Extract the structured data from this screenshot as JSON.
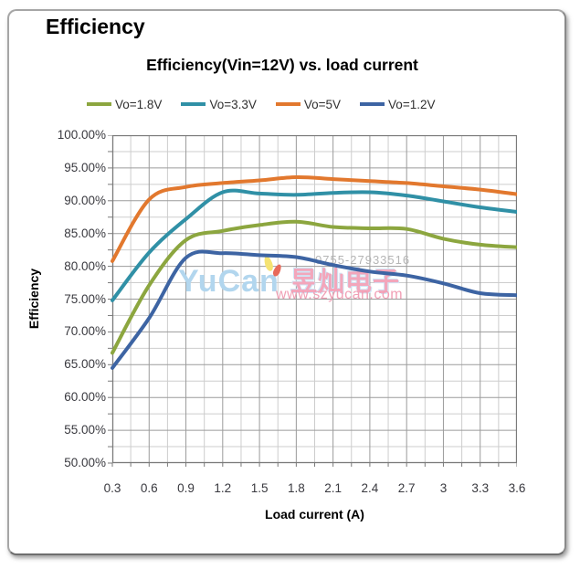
{
  "heading": "Efficiency",
  "chart": {
    "title": "Efficiency(Vin=12V) vs. load current",
    "xlabel": "Load current (A)",
    "ylabel": "Efficiency"
  },
  "y_tick_labels": [
    "100.00%",
    "95.00%",
    "90.00%",
    "85.00%",
    "80.00%",
    "75.00%",
    "70.00%",
    "65.00%",
    "60.00%",
    "55.00%",
    "50.00%"
  ],
  "x_tick_labels": [
    "0.3",
    "0.6",
    "0.9",
    "1.2",
    "1.5",
    "1.8",
    "2.1",
    "2.4",
    "2.7",
    "3",
    "3.3",
    "3.6"
  ],
  "chart_data": {
    "type": "line",
    "title": "Efficiency(Vin=12V) vs. load current",
    "xlabel": "Load current (A)",
    "ylabel": "Efficiency",
    "x": [
      0.3,
      0.6,
      0.9,
      1.2,
      1.5,
      1.8,
      2.1,
      2.4,
      2.7,
      3.0,
      3.3,
      3.6
    ],
    "series": [
      {
        "name": "Vo=1.8V",
        "color": "#8CA63F",
        "values": [
          66.8,
          77.1,
          84.0,
          85.4,
          86.3,
          86.8,
          86.0,
          85.8,
          85.7,
          84.2,
          83.3,
          82.9
        ]
      },
      {
        "name": "Vo=3.3V",
        "color": "#3090A6",
        "values": [
          74.8,
          82.1,
          87.2,
          91.3,
          91.1,
          90.9,
          91.2,
          91.3,
          90.8,
          89.9,
          89.0,
          88.3
        ]
      },
      {
        "name": "Vo=5V",
        "color": "#E2782E",
        "values": [
          80.8,
          90.2,
          92.1,
          92.7,
          93.1,
          93.6,
          93.3,
          93.0,
          92.7,
          92.2,
          91.7,
          91.0
        ]
      },
      {
        "name": "Vo=1.2V",
        "color": "#3D64A3",
        "values": [
          64.5,
          72.1,
          81.3,
          82.0,
          81.7,
          81.4,
          80.2,
          79.2,
          78.6,
          77.4,
          75.9,
          75.6
        ]
      }
    ],
    "xlim": [
      0.3,
      3.6
    ],
    "ylim": [
      50,
      100
    ],
    "x_major_step": 0.3,
    "x_minor_step": 0.15,
    "y_major_step": 5,
    "y_minor_step": 2.5,
    "grid": true,
    "legend_position": "top"
  },
  "watermark": {
    "phone": "0755-27933516",
    "brand": "YuCan",
    "chinese": "昱灿电子",
    "url": "www.szyucan.com"
  },
  "colors": {
    "grid_major": "#9b9b9b",
    "grid_minor": "#cdcdcd",
    "plot_border": "#7a7a7a",
    "tick": "#7a7a7a",
    "wm_phone": "#b5b5b5",
    "wm_brand": "#b2d6ee",
    "wm_chinese": "#f3a6bb",
    "wm_url": "#f19fb5",
    "card_border": "#a6a6a6"
  }
}
